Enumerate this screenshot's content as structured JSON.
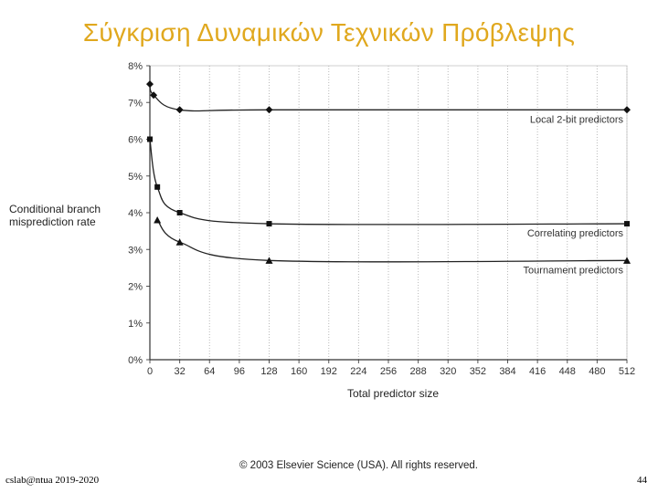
{
  "slide": {
    "title": "Σύγκριση Δυναμικών Τεχνικών Πρόβλεψης",
    "copyright": "© 2003 Elsevier Science (USA). All rights reserved.",
    "footer_left": "cslab@ntua 2019-2020",
    "page_number": "44"
  },
  "chart_data": {
    "type": "line",
    "title": "",
    "xlabel": "Total predictor size",
    "ylabel": "Conditional branch misprediction rate",
    "x_ticks": [
      0,
      32,
      64,
      96,
      128,
      160,
      192,
      224,
      256,
      288,
      320,
      352,
      384,
      416,
      448,
      480,
      512
    ],
    "y_ticks": [
      "0%",
      "1%",
      "2%",
      "3%",
      "4%",
      "5%",
      "6%",
      "7%",
      "8%"
    ],
    "xlim": [
      0,
      512
    ],
    "ylim": [
      0,
      8
    ],
    "grid": "vertical",
    "series": [
      {
        "name": "Local 2-bit predictors",
        "marker": "diamond",
        "points": [
          [
            0,
            7.5
          ],
          [
            4,
            7.2
          ],
          [
            32,
            6.8
          ],
          [
            128,
            6.8
          ],
          [
            512,
            6.8
          ]
        ]
      },
      {
        "name": "Correlating predictors",
        "marker": "square",
        "points": [
          [
            0,
            6.0
          ],
          [
            8,
            4.7
          ],
          [
            32,
            4.0
          ],
          [
            128,
            3.7
          ],
          [
            512,
            3.7
          ]
        ]
      },
      {
        "name": "Tournament predictors",
        "marker": "triangle",
        "points": [
          [
            8,
            3.8
          ],
          [
            32,
            3.2
          ],
          [
            128,
            2.7
          ],
          [
            512,
            2.7
          ]
        ]
      }
    ]
  }
}
